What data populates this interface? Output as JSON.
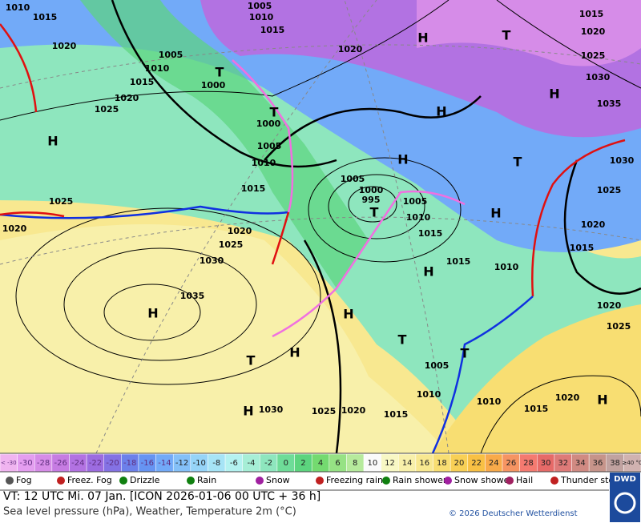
{
  "map": {
    "labels": [
      "1010",
      "1015",
      "1005",
      "1010",
      "1015",
      "1020",
      "H",
      "T",
      "1015",
      "1020",
      "1025",
      "1030",
      "1035",
      "H",
      "H",
      "T",
      "1030",
      "1025",
      "1020",
      "1005",
      "1010",
      "1015",
      "1020",
      "1025",
      "1000",
      "T",
      "T",
      "1000",
      "1005",
      "1010",
      "1015",
      "H",
      "H",
      "1005",
      "1000",
      "995",
      "T",
      "1005",
      "1010",
      "1015",
      "H",
      "1015",
      "1010",
      "H",
      "1020",
      "1015",
      "1025",
      "1020",
      "1030",
      "1025",
      "1020",
      "1035",
      "H",
      "H",
      "H",
      "T",
      "1020",
      "1025",
      "T",
      "T",
      "1005",
      "1010",
      "1010",
      "1020",
      "H",
      "1015",
      "1030",
      "1025",
      "1020",
      "1015",
      "H"
    ]
  },
  "temperature_legend": {
    "labels": [
      "< -30",
      "-30",
      "-28",
      "-26",
      "-24",
      "-22",
      "-20",
      "-18",
      "-16",
      "-14",
      "-12",
      "-10",
      "-8",
      "-6",
      "-4",
      "-2",
      "0",
      "2",
      "4",
      "6",
      "8",
      "10",
      "12",
      "14",
      "16",
      "18",
      "20",
      "22",
      "24",
      "26",
      "28",
      "30",
      "32",
      "34",
      "36",
      "38",
      "≥40 °C"
    ],
    "colors": [
      "#f0b4f0",
      "#e49ef0",
      "#d68ce8",
      "#c67ce2",
      "#b272e2",
      "#9c6ce0",
      "#8472e4",
      "#6c80ea",
      "#6694f2",
      "#72aaf8",
      "#84c0f8",
      "#96d4f8",
      "#a6e4f6",
      "#b4f2f0",
      "#a6eed6",
      "#8ee6be",
      "#6edc98",
      "#5cd47e",
      "#74da70",
      "#96e284",
      "#b6ea9c",
      "#fafafa",
      "#f8f8c4",
      "#f8f0aa",
      "#f8e890",
      "#f8de72",
      "#f8d056",
      "#f8c044",
      "#f8aa4a",
      "#f69462",
      "#f47a70",
      "#e66a68",
      "#de7a78",
      "#d08a82",
      "#c6948a",
      "#c0a2a0",
      "#d0b2b0"
    ]
  },
  "weather_legend": [
    "Fog",
    "Freez. Fog",
    "Drizzle",
    "Rain",
    "Snow",
    "Freezing rain",
    "Rain shower",
    "Snow shower",
    "Hail",
    "Thunder storm"
  ],
  "footer": {
    "valid_time": "VT: 12 UTC Mi.   07 Jan. [ICON 2026-01-06  00 UTC + 36 h]",
    "description": "Sea level pressure (hPa), Weather, Temperature 2m (°C)",
    "copyright": "© 2026 Deutscher Wetterdienst",
    "logo": "DWD"
  }
}
